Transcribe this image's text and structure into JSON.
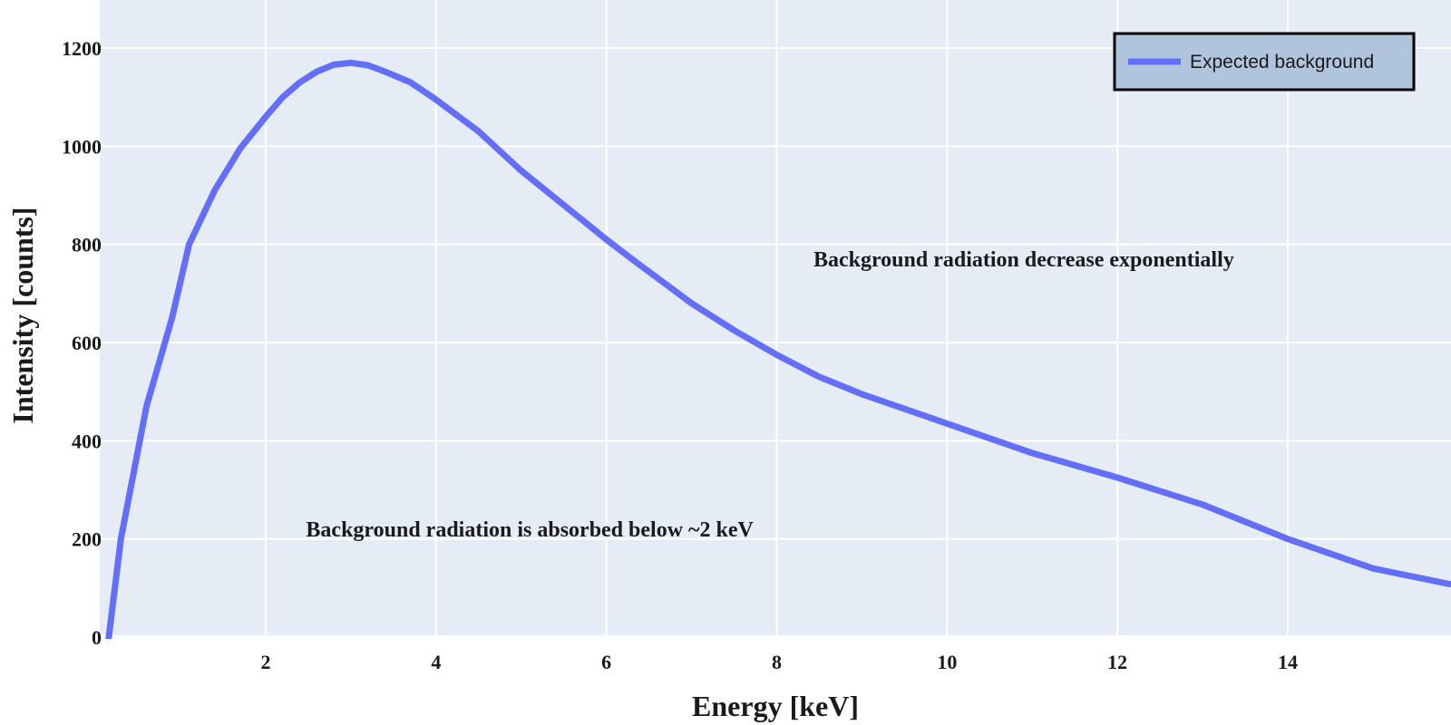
{
  "chart_data": {
    "type": "line",
    "title": "",
    "xlabel": "Energy [keV]",
    "ylabel": "Intensity [counts]",
    "xlim": [
      0.1,
      15.9
    ],
    "ylim": [
      0,
      1200
    ],
    "x_ticks": [
      2,
      4,
      6,
      8,
      10,
      12,
      14
    ],
    "y_ticks": [
      0,
      200,
      400,
      600,
      800,
      1000,
      1200
    ],
    "grid": true,
    "legend_position": "top-right",
    "series": [
      {
        "name": "Expected background",
        "color": "#636efa",
        "x": [
          0.15,
          0.3,
          0.6,
          0.9,
          1.1,
          1.4,
          1.7,
          2.0,
          2.2,
          2.4,
          2.6,
          2.8,
          3.0,
          3.2,
          3.4,
          3.7,
          4.0,
          4.5,
          5.0,
          5.5,
          6.0,
          6.3,
          7.0,
          7.5,
          8.0,
          8.5,
          9.0,
          10.0,
          11.0,
          12.0,
          13.0,
          14.0,
          15.0,
          15.9
        ],
        "y": [
          -10,
          200,
          470,
          650,
          800,
          910,
          995,
          1060,
          1100,
          1130,
          1152,
          1166,
          1170,
          1165,
          1152,
          1130,
          1095,
          1030,
          950,
          880,
          810,
          770,
          680,
          625,
          575,
          530,
          495,
          435,
          375,
          325,
          270,
          200,
          140,
          108
        ]
      }
    ],
    "annotations": [
      {
        "text": "Background radiation decrease exponentially",
        "x": 10.9,
        "y": 770
      },
      {
        "text": "Background radiation is absorbed below ~2 keV",
        "x": 5.1,
        "y": 220
      }
    ],
    "colors": {
      "plot_background": "#e5ecf6",
      "grid": "#ffffff",
      "legend_background": "#b0c4de",
      "legend_border": "#000000",
      "line": "#636efa"
    }
  }
}
